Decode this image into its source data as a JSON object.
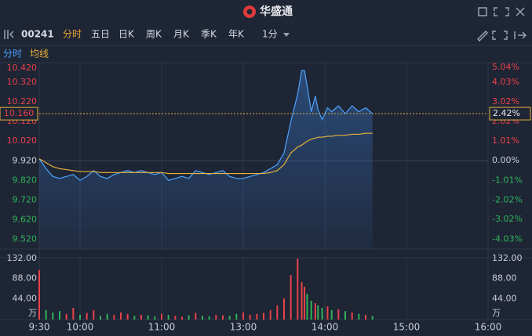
{
  "header": {
    "app_name": "华盛通"
  },
  "toolbar": {
    "code": "00241",
    "tabs": [
      "分时",
      "五日",
      "日K",
      "周K",
      "月K",
      "季K",
      "年K",
      "1分"
    ]
  },
  "chart_data": {
    "type": "line",
    "x": [
      0,
      5,
      10,
      15,
      20,
      25,
      30,
      35,
      40,
      45,
      50,
      55,
      60,
      65,
      70,
      75,
      80,
      85,
      90,
      95,
      100,
      105,
      110,
      115,
      120,
      125,
      130,
      135,
      140,
      145,
      150,
      155,
      160,
      165,
      170,
      175,
      180,
      185,
      190,
      193,
      195,
      197,
      200,
      203,
      205,
      208,
      212,
      215,
      220,
      225,
      230,
      235,
      240,
      245
    ],
    "xlim": [
      0,
      330
    ],
    "xticks": [
      {
        "value": 0,
        "label": "9:30"
      },
      {
        "value": 30,
        "label": "10:00"
      },
      {
        "value": 90,
        "label": "11:00"
      },
      {
        "value": 150,
        "label": "13:00"
      },
      {
        "value": 210,
        "label": "14:00"
      },
      {
        "value": 270,
        "label": "15:00"
      },
      {
        "value": 330,
        "label": "16:00"
      }
    ],
    "series": [
      {
        "name": "分时",
        "color": "#4da3ff",
        "values": [
          9.93,
          9.88,
          9.84,
          9.83,
          9.84,
          9.85,
          9.82,
          9.84,
          9.87,
          9.84,
          9.83,
          9.85,
          9.86,
          9.87,
          9.86,
          9.87,
          9.86,
          9.85,
          9.86,
          9.82,
          9.83,
          9.84,
          9.83,
          9.87,
          9.86,
          9.85,
          9.86,
          9.87,
          9.84,
          9.83,
          9.83,
          9.84,
          9.85,
          9.86,
          9.88,
          9.9,
          9.96,
          10.12,
          10.26,
          10.38,
          10.38,
          10.3,
          10.17,
          10.25,
          10.18,
          10.13,
          10.19,
          10.17,
          10.2,
          10.16,
          10.2,
          10.17,
          10.19,
          10.16
        ]
      },
      {
        "name": "均线",
        "color": "#e8b33a",
        "values": [
          9.93,
          9.91,
          9.89,
          9.88,
          9.875,
          9.87,
          9.865,
          9.865,
          9.865,
          9.86,
          9.86,
          9.86,
          9.86,
          9.86,
          9.86,
          9.86,
          9.86,
          9.86,
          9.86,
          9.855,
          9.855,
          9.855,
          9.855,
          9.855,
          9.855,
          9.855,
          9.855,
          9.855,
          9.855,
          9.855,
          9.855,
          9.855,
          9.855,
          9.855,
          9.86,
          9.87,
          9.9,
          9.96,
          9.99,
          10.0,
          10.01,
          10.02,
          10.03,
          10.035,
          10.04,
          10.04,
          10.045,
          10.045,
          10.05,
          10.05,
          10.055,
          10.055,
          10.06,
          10.06
        ]
      }
    ],
    "ylim": [
      9.47,
      10.42
    ],
    "yticks": [
      {
        "value": 10.42,
        "label": "10.420"
      },
      {
        "value": 10.32,
        "label": "10.320"
      },
      {
        "value": 10.22,
        "label": "10.220"
      },
      {
        "value": 10.12,
        "label": "10.120"
      },
      {
        "value": 10.02,
        "label": "10.020"
      },
      {
        "value": 9.92,
        "label": "9.920"
      },
      {
        "value": 9.82,
        "label": "9.820"
      },
      {
        "value": 9.72,
        "label": "9.720"
      },
      {
        "value": 9.62,
        "label": "9.620"
      },
      {
        "value": 9.52,
        "label": "9.520"
      }
    ],
    "y2lim": [
      -4.54,
      5.04
    ],
    "y2ticks": [
      {
        "value": 5.04,
        "label": "5.04%"
      },
      {
        "value": 4.03,
        "label": "4.03%"
      },
      {
        "value": 3.02,
        "label": "3.02%"
      },
      {
        "value": 2.02,
        "label": "2.02%"
      },
      {
        "value": 1.01,
        "label": "1.01%"
      },
      {
        "value": 0,
        "label": "0.00%"
      },
      {
        "value": -1.01,
        "label": "-1.01%"
      },
      {
        "value": -2.02,
        "label": "-2.02%"
      },
      {
        "value": -3.02,
        "label": "-3.02%"
      },
      {
        "value": -4.03,
        "label": "-4.03%"
      }
    ],
    "current_price": {
      "value": 10.16,
      "label": "10.160"
    },
    "current_change": {
      "value": 2.42,
      "label": "2.42%"
    },
    "grid": true,
    "volume": {
      "unit": "万",
      "up_color": "#e8424a",
      "down_color": "#2fb45a",
      "values": [
        105,
        20,
        15,
        18,
        12,
        25,
        10,
        14,
        20,
        8,
        12,
        10,
        15,
        12,
        8,
        10,
        9,
        7,
        12,
        10,
        8,
        6,
        9,
        14,
        8,
        7,
        10,
        9,
        8,
        12,
        15,
        10,
        12,
        14,
        20,
        30,
        45,
        95,
        130,
        80,
        70,
        55,
        40,
        35,
        30,
        25,
        28,
        20,
        22,
        18,
        15,
        12,
        10,
        8
      ],
      "ylim": [
        0,
        132
      ],
      "yticks": [
        {
          "value": 132,
          "label": "132.00"
        },
        {
          "value": 88,
          "label": "88.00"
        },
        {
          "value": 44,
          "label": "44.00"
        }
      ]
    }
  }
}
